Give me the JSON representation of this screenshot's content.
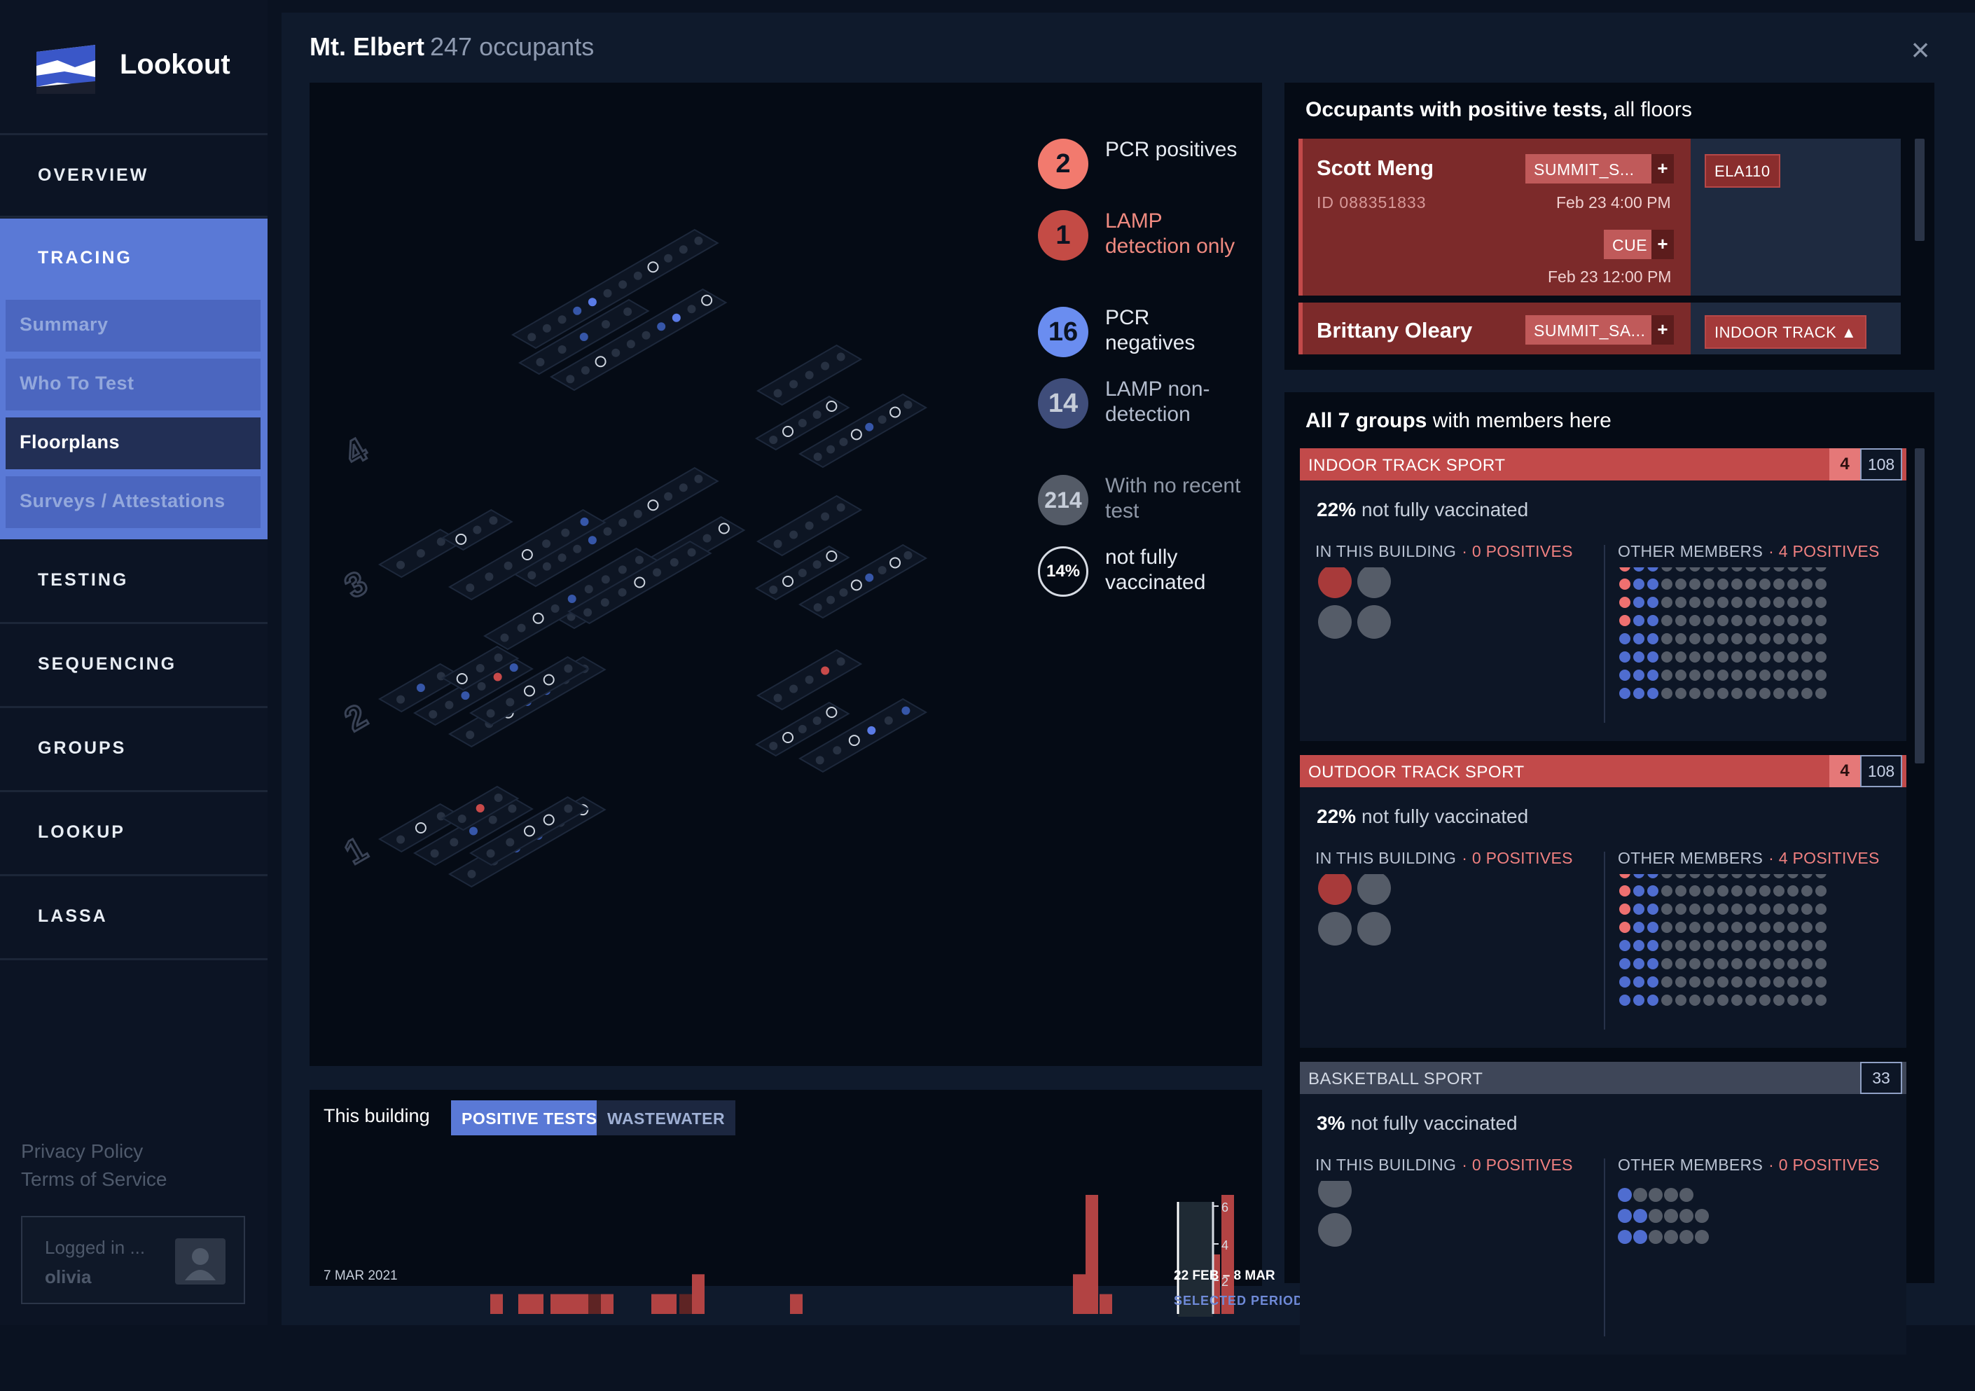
{
  "app": {
    "name": "Lookout"
  },
  "nav": {
    "items": [
      "OVERVIEW",
      "TRACING",
      "TESTING",
      "SEQUENCING",
      "GROUPS",
      "LOOKUP",
      "LASSA"
    ],
    "sub": [
      "Summary",
      "Who To Test",
      "Floorplans",
      "Surveys / Attestations"
    ],
    "active_sub": "Floorplans"
  },
  "footer": {
    "privacy": "Privacy Policy",
    "terms": "Terms of Service",
    "logged_in": "Logged in ...",
    "user": "olivia"
  },
  "header": {
    "building": "Mt. Elbert",
    "occupants": "247 occupants",
    "close_icon": "×"
  },
  "legend": [
    {
      "value": "2",
      "label": "PCR positives",
      "color": "#f27a6e",
      "text_color": "#e6ebf2"
    },
    {
      "value": "1",
      "label": "LAMP detection only",
      "color": "#c44b45",
      "text_color": "#f08a80"
    },
    {
      "value": "16",
      "label": "PCR negatives",
      "color": "#6a8df0",
      "text_color": "#e6ebf2"
    },
    {
      "value": "14",
      "label": "LAMP non-detection",
      "color": "#3f4d7a",
      "text_color": "#b3bccd"
    },
    {
      "value": "214",
      "label": "With no recent test",
      "color": "#545b67",
      "text_color": "#8e97a6"
    },
    {
      "value": "14%",
      "label": "not fully vaccinated",
      "color": "outline",
      "text_color": "#e6ebf2"
    }
  ],
  "floors": [
    "1",
    "2",
    "3",
    "4"
  ],
  "chart": {
    "title": "This building",
    "tabs": [
      "POSITIVE TESTS",
      "WASTEWATER"
    ],
    "active_tab": "POSITIVE TESTS",
    "start_label": "7 MAR 2021",
    "period_label": "22 FEB – 8 MAR",
    "period_caption": "SELECTED PERIOD",
    "y_ticks": [
      "6",
      "4",
      "2"
    ]
  },
  "chart_data": {
    "type": "bar",
    "title": "This building",
    "xlabel": "",
    "ylabel": "",
    "ylim": [
      0,
      6
    ],
    "x_start_label": "7 MAR 2021",
    "series": [
      {
        "values": [
          1,
          0,
          1,
          1,
          0,
          1,
          1,
          1,
          1,
          0,
          1,
          1,
          2,
          0,
          0,
          0,
          0,
          1,
          0,
          0,
          0,
          0,
          0,
          0,
          0,
          0,
          0,
          0,
          2,
          6,
          1,
          0,
          0,
          0,
          0,
          0,
          3,
          6
        ]
      }
    ]
  },
  "occupants": {
    "title_bold": "Occupants with positive tests,",
    "title_rest": "all floors",
    "list": [
      {
        "name": "Scott Meng",
        "id": "ID 088351833",
        "tests": [
          {
            "tag": "SUMMIT_S...",
            "date": "Feb 23 4:00 PM"
          },
          {
            "tag": "CUE",
            "date": "Feb 23 12:00 PM"
          }
        ],
        "badge": "ELA110"
      },
      {
        "name": "Brittany Oleary",
        "tests": [
          {
            "tag": "SUMMIT_SA..."
          }
        ],
        "badge": "INDOOR TRACK ▲"
      }
    ]
  },
  "groups": {
    "title_bold": "All 7 groups",
    "title_rest": "with members here",
    "in_building": "IN THIS BUILDING",
    "other": "OTHER MEMBERS",
    "list": [
      {
        "name": "INDOOR TRACK SPORT",
        "positives": "4",
        "count": "108",
        "vax_pct": "22%",
        "vax_text": "not fully vaccinated",
        "in_pos": "· 0 POSITIVES",
        "other_pos": "· 4 POSITIVES",
        "highlight": true
      },
      {
        "name": "OUTDOOR TRACK SPORT",
        "positives": "4",
        "count": "108",
        "vax_pct": "22%",
        "vax_text": "not fully vaccinated",
        "in_pos": "· 0 POSITIVES",
        "other_pos": "· 4 POSITIVES",
        "highlight": true
      },
      {
        "name": "BASKETBALL SPORT",
        "positives": "",
        "count": "33",
        "vax_pct": "3%",
        "vax_text": "not fully vaccinated",
        "in_pos": "· 0 POSITIVES",
        "other_pos": "· 0 POSITIVES",
        "highlight": false
      }
    ]
  }
}
